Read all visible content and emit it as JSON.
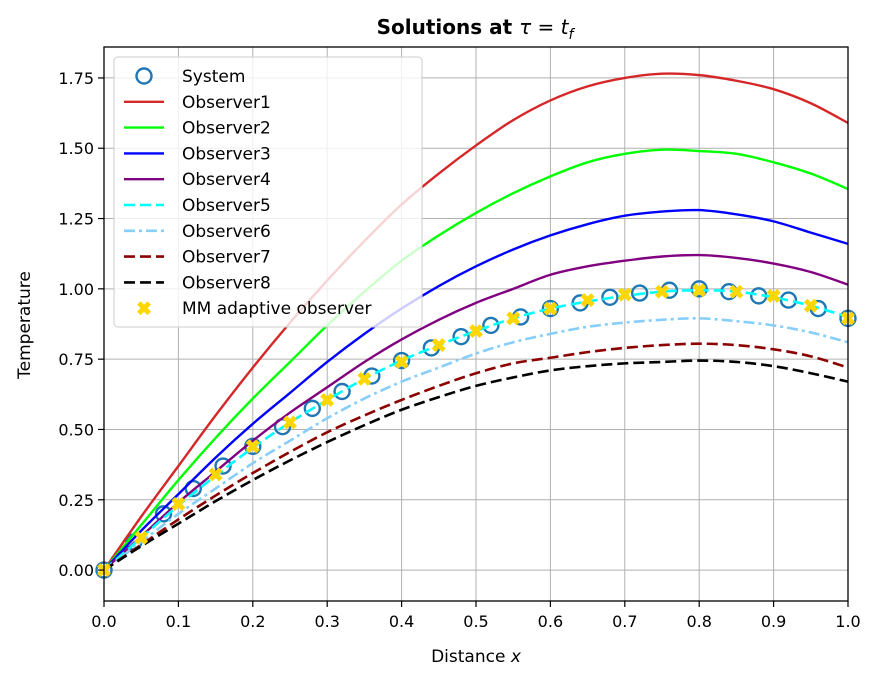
{
  "chart_data": {
    "type": "line",
    "title": "Solutions at τ = t_f",
    "title_bold": "Solutions at ",
    "title_math": "τ = t",
    "title_sub": "f",
    "xlabel_text": "Distance ",
    "xlabel_var": "x",
    "ylabel": "Temperature",
    "xlim": [
      0.0,
      1.0
    ],
    "ylim": [
      -0.11,
      1.86
    ],
    "x_ticks": [
      "0.0",
      "0.1",
      "0.2",
      "0.3",
      "0.4",
      "0.5",
      "0.6",
      "0.7",
      "0.8",
      "0.9",
      "1.0"
    ],
    "y_ticks": [
      "0.00",
      "0.25",
      "0.50",
      "0.75",
      "1.00",
      "1.25",
      "1.50",
      "1.75"
    ],
    "grid": true,
    "legend_position": "top-left",
    "x": [
      0.0,
      0.05,
      0.1,
      0.15,
      0.2,
      0.25,
      0.3,
      0.35,
      0.4,
      0.45,
      0.5,
      0.55,
      0.6,
      0.65,
      0.7,
      0.75,
      0.8,
      0.85,
      0.9,
      0.95,
      1.0
    ],
    "series": [
      {
        "name": "System",
        "style": "circle-marker",
        "color": "#1f77b4",
        "x": [
          0.0,
          0.04,
          0.08,
          0.12,
          0.16,
          0.2,
          0.24,
          0.28,
          0.32,
          0.36,
          0.4,
          0.44,
          0.48,
          0.52,
          0.56,
          0.6,
          0.64,
          0.68,
          0.72,
          0.76,
          0.8,
          0.84,
          0.88,
          0.92,
          0.96,
          1.0
        ],
        "values": [
          0.0,
          0.1,
          0.2,
          0.29,
          0.37,
          0.44,
          0.51,
          0.575,
          0.635,
          0.69,
          0.745,
          0.79,
          0.83,
          0.87,
          0.9,
          0.93,
          0.95,
          0.97,
          0.985,
          0.995,
          1.0,
          0.99,
          0.975,
          0.96,
          0.93,
          0.895
        ]
      },
      {
        "name": "Observer1",
        "style": "solid",
        "color": "#d62728",
        "values": [
          0.0,
          0.19,
          0.37,
          0.55,
          0.72,
          0.88,
          1.03,
          1.17,
          1.3,
          1.41,
          1.51,
          1.6,
          1.67,
          1.72,
          1.75,
          1.765,
          1.76,
          1.74,
          1.71,
          1.66,
          1.59
        ]
      },
      {
        "name": "Observer2",
        "style": "solid",
        "color": "#00ff00",
        "values": [
          0.0,
          0.16,
          0.32,
          0.47,
          0.61,
          0.74,
          0.87,
          0.99,
          1.1,
          1.19,
          1.27,
          1.34,
          1.4,
          1.45,
          1.48,
          1.495,
          1.49,
          1.48,
          1.45,
          1.41,
          1.355
        ]
      },
      {
        "name": "Observer3",
        "style": "solid",
        "color": "#0000ff",
        "values": [
          0.0,
          0.14,
          0.27,
          0.4,
          0.52,
          0.63,
          0.74,
          0.84,
          0.93,
          1.01,
          1.08,
          1.14,
          1.19,
          1.23,
          1.26,
          1.275,
          1.28,
          1.265,
          1.24,
          1.2,
          1.16
        ]
      },
      {
        "name": "Observer4",
        "style": "solid",
        "color": "#800080",
        "values": [
          0.0,
          0.12,
          0.24,
          0.35,
          0.46,
          0.56,
          0.65,
          0.74,
          0.82,
          0.89,
          0.95,
          1.0,
          1.05,
          1.08,
          1.1,
          1.115,
          1.12,
          1.11,
          1.09,
          1.06,
          1.015
        ]
      },
      {
        "name": "Observer5",
        "style": "dashed",
        "color": "#00ffff",
        "values": [
          0.0,
          0.115,
          0.23,
          0.335,
          0.435,
          0.525,
          0.605,
          0.68,
          0.745,
          0.8,
          0.85,
          0.895,
          0.93,
          0.955,
          0.975,
          0.99,
          0.995,
          0.99,
          0.97,
          0.94,
          0.9
        ]
      },
      {
        "name": "Observer6",
        "style": "dashdot",
        "color": "#87cefa",
        "values": [
          0.0,
          0.1,
          0.2,
          0.29,
          0.38,
          0.46,
          0.54,
          0.61,
          0.67,
          0.72,
          0.77,
          0.81,
          0.84,
          0.865,
          0.88,
          0.89,
          0.895,
          0.885,
          0.87,
          0.845,
          0.81
        ]
      },
      {
        "name": "Observer7",
        "style": "dashed",
        "color": "#8b0000",
        "values": [
          0.0,
          0.09,
          0.18,
          0.265,
          0.345,
          0.42,
          0.49,
          0.55,
          0.605,
          0.655,
          0.7,
          0.735,
          0.755,
          0.775,
          0.79,
          0.8,
          0.805,
          0.8,
          0.785,
          0.76,
          0.72
        ]
      },
      {
        "name": "Observer8",
        "style": "dashed",
        "color": "#000000",
        "values": [
          0.0,
          0.085,
          0.165,
          0.245,
          0.32,
          0.39,
          0.455,
          0.515,
          0.57,
          0.615,
          0.655,
          0.685,
          0.71,
          0.725,
          0.735,
          0.74,
          0.745,
          0.74,
          0.725,
          0.7,
          0.67
        ]
      },
      {
        "name": "MM adaptive observer",
        "style": "x-marker",
        "color": "#ffd700",
        "values": [
          0.0,
          0.115,
          0.235,
          0.34,
          0.44,
          0.525,
          0.605,
          0.68,
          0.74,
          0.8,
          0.85,
          0.895,
          0.93,
          0.96,
          0.98,
          0.99,
          0.995,
          0.99,
          0.975,
          0.94,
          0.895
        ]
      }
    ]
  }
}
